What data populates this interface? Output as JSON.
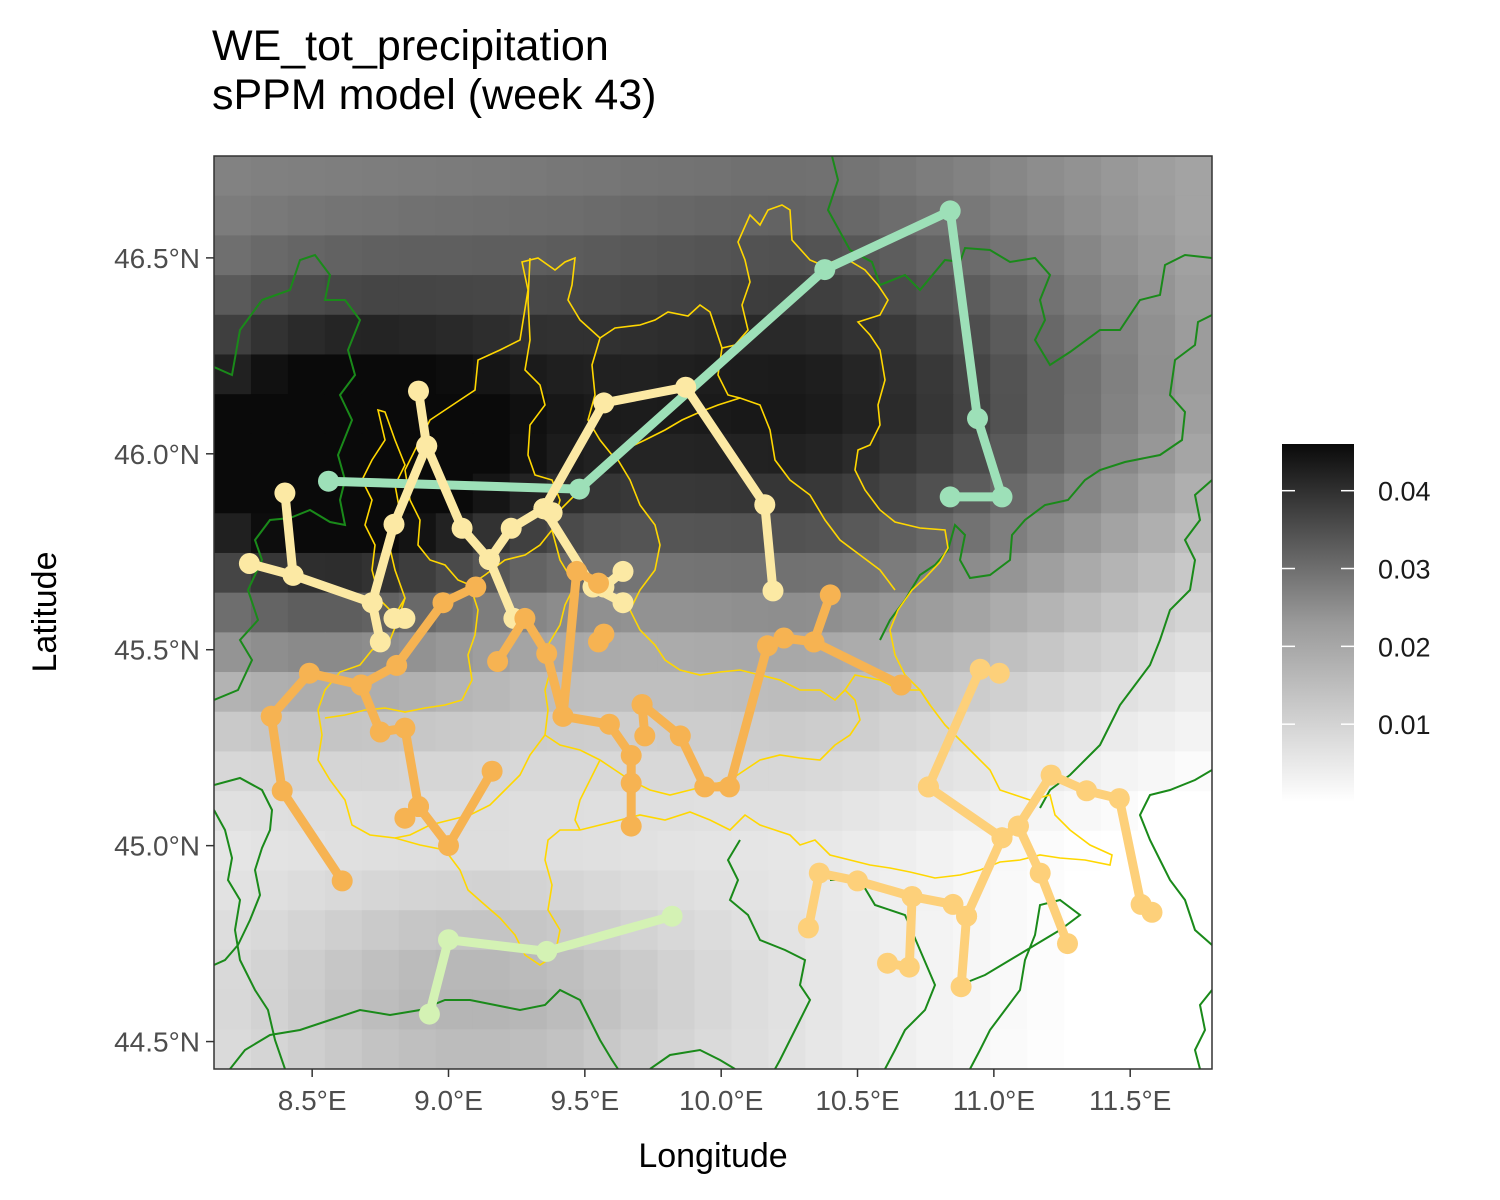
{
  "title": {
    "line1": "WE_tot_precipitation",
    "line2": "sPPM model (week 43)"
  },
  "chart_data": {
    "type": "map",
    "xlabel": "Longitude",
    "ylabel": "Latitude",
    "xlim": [
      8.14,
      11.8
    ],
    "ylim": [
      44.43,
      46.76
    ],
    "x_ticks": [
      {
        "value": 8.5,
        "label": "8.5°E"
      },
      {
        "value": 9.0,
        "label": "9.0°E"
      },
      {
        "value": 9.5,
        "label": "9.5°E"
      },
      {
        "value": 10.0,
        "label": "10.0°E"
      },
      {
        "value": 10.5,
        "label": "10.5°E"
      },
      {
        "value": 11.0,
        "label": "11.0°E"
      },
      {
        "value": 11.5,
        "label": "11.5°E"
      }
    ],
    "y_ticks": [
      {
        "value": 44.5,
        "label": "44.5°N"
      },
      {
        "value": 45.0,
        "label": "45.0°N"
      },
      {
        "value": 45.5,
        "label": "45.5°N"
      },
      {
        "value": 46.0,
        "label": "46.0°N"
      },
      {
        "value": 46.5,
        "label": "46.5°N"
      }
    ],
    "raster": {
      "description_values": "gridded intensity, darker = higher",
      "range": [
        0.0,
        0.046
      ],
      "colors": [
        "#ffffff",
        "#0a0a0a"
      ]
    },
    "legend": {
      "placement": "right",
      "ticks": [
        {
          "value": 0.01,
          "label": "0.01"
        },
        {
          "value": 0.02,
          "label": "0.02"
        },
        {
          "value": 0.03,
          "label": "0.03"
        },
        {
          "value": 0.04,
          "label": "0.04"
        }
      ]
    },
    "border_colors": {
      "green": "#1a8a1a",
      "yellow": "#ffd700"
    },
    "series": [
      {
        "color": "#9de0b8",
        "points": [
          [
            8.56,
            45.93
          ],
          [
            9.48,
            45.91
          ],
          [
            10.38,
            46.47
          ],
          [
            10.84,
            46.62
          ],
          [
            10.94,
            46.09
          ],
          [
            11.03,
            45.89
          ],
          [
            10.84,
            45.89
          ]
        ]
      },
      {
        "color": "#fce9a4",
        "points": [
          [
            8.27,
            45.72
          ],
          [
            8.43,
            45.69
          ],
          [
            8.4,
            45.9
          ]
        ]
      },
      {
        "color": "#fce9a4",
        "points": [
          [
            8.43,
            45.69
          ],
          [
            8.72,
            45.62
          ],
          [
            8.75,
            45.52
          ]
        ]
      },
      {
        "color": "#fce9a4",
        "points": [
          [
            8.72,
            45.62
          ],
          [
            8.8,
            45.82
          ],
          [
            8.92,
            46.02
          ],
          [
            8.89,
            46.16
          ]
        ]
      },
      {
        "color": "#fce9a4",
        "points": [
          [
            8.92,
            46.02
          ],
          [
            9.05,
            45.81
          ],
          [
            9.15,
            45.73
          ],
          [
            9.24,
            45.58
          ]
        ]
      },
      {
        "color": "#fce9a4",
        "points": [
          [
            9.15,
            45.73
          ],
          [
            9.23,
            45.81
          ],
          [
            9.35,
            45.86
          ],
          [
            9.57,
            46.13
          ],
          [
            9.87,
            46.17
          ],
          [
            10.16,
            45.87
          ],
          [
            10.19,
            45.65
          ]
        ]
      },
      {
        "color": "#fce9a4",
        "points": [
          [
            9.35,
            45.86
          ],
          [
            9.53,
            45.66
          ],
          [
            9.64,
            45.62
          ]
        ]
      },
      {
        "color": "#fce9a4",
        "points": [
          [
            9.35,
            45.86
          ],
          [
            9.38,
            45.85
          ]
        ]
      },
      {
        "color": "#fce9a4",
        "points": [
          [
            9.57,
            45.66
          ],
          [
            9.64,
            45.7
          ]
        ]
      },
      {
        "color": "#fce9a4",
        "points": [
          [
            8.8,
            45.58
          ],
          [
            8.84,
            45.58
          ]
        ]
      },
      {
        "color": "#f6b352",
        "points": [
          [
            8.35,
            45.33
          ],
          [
            8.49,
            45.44
          ],
          [
            8.68,
            45.41
          ],
          [
            8.81,
            45.46
          ],
          [
            8.98,
            45.62
          ],
          [
            9.1,
            45.66
          ]
        ]
      },
      {
        "color": "#f6b352",
        "points": [
          [
            8.35,
            45.33
          ],
          [
            8.39,
            45.14
          ],
          [
            8.61,
            44.91
          ]
        ]
      },
      {
        "color": "#f6b352",
        "points": [
          [
            8.68,
            45.41
          ],
          [
            8.75,
            45.29
          ],
          [
            8.84,
            45.3
          ],
          [
            8.89,
            45.1
          ],
          [
            9.0,
            45.0
          ],
          [
            9.16,
            45.19
          ]
        ]
      },
      {
        "color": "#f6b352",
        "points": [
          [
            8.89,
            45.1
          ],
          [
            8.84,
            45.07
          ]
        ]
      },
      {
        "color": "#f6b352",
        "points": [
          [
            9.18,
            45.47
          ],
          [
            9.28,
            45.58
          ],
          [
            9.36,
            45.49
          ],
          [
            9.42,
            45.33
          ],
          [
            9.59,
            45.31
          ],
          [
            9.67,
            45.23
          ],
          [
            9.67,
            45.16
          ],
          [
            9.67,
            45.05
          ]
        ]
      },
      {
        "color": "#f6b352",
        "points": [
          [
            9.42,
            45.33
          ],
          [
            9.47,
            45.7
          ],
          [
            9.55,
            45.67
          ]
        ]
      },
      {
        "color": "#f6b352",
        "points": [
          [
            9.55,
            45.52
          ],
          [
            9.57,
            45.54
          ]
        ]
      },
      {
        "color": "#f6b352",
        "points": [
          [
            9.71,
            45.36
          ],
          [
            9.85,
            45.28
          ],
          [
            9.94,
            45.15
          ],
          [
            10.03,
            45.15
          ],
          [
            10.17,
            45.51
          ],
          [
            10.23,
            45.53
          ],
          [
            10.34,
            45.52
          ],
          [
            10.4,
            45.64
          ]
        ]
      },
      {
        "color": "#f6b352",
        "points": [
          [
            9.71,
            45.36
          ],
          [
            9.72,
            45.28
          ]
        ]
      },
      {
        "color": "#f6b352",
        "points": [
          [
            10.34,
            45.52
          ],
          [
            10.66,
            45.41
          ]
        ]
      },
      {
        "color": "#fdd07a",
        "points": [
          [
            10.76,
            45.15
          ],
          [
            11.03,
            45.02
          ],
          [
            11.09,
            45.05
          ],
          [
            11.17,
            44.93
          ],
          [
            11.27,
            44.75
          ]
        ]
      },
      {
        "color": "#fdd07a",
        "points": [
          [
            10.76,
            45.15
          ],
          [
            10.95,
            45.45
          ],
          [
            11.02,
            45.44
          ]
        ]
      },
      {
        "color": "#fdd07a",
        "points": [
          [
            11.09,
            45.05
          ],
          [
            11.21,
            45.18
          ],
          [
            11.34,
            45.14
          ],
          [
            11.46,
            45.12
          ],
          [
            11.54,
            44.85
          ],
          [
            11.58,
            44.83
          ]
        ]
      },
      {
        "color": "#fdd07a",
        "points": [
          [
            11.03,
            45.02
          ],
          [
            10.9,
            44.82
          ],
          [
            10.88,
            44.64
          ]
        ]
      },
      {
        "color": "#fdd07a",
        "points": [
          [
            10.9,
            44.82
          ],
          [
            10.85,
            44.85
          ],
          [
            10.7,
            44.87
          ],
          [
            10.69,
            44.69
          ],
          [
            10.61,
            44.7
          ]
        ]
      },
      {
        "color": "#fdd07a",
        "points": [
          [
            10.7,
            44.87
          ],
          [
            10.5,
            44.91
          ],
          [
            10.36,
            44.93
          ],
          [
            10.32,
            44.79
          ]
        ]
      },
      {
        "color": "#d4f2b4",
        "points": [
          [
            8.93,
            44.57
          ],
          [
            9.0,
            44.76
          ],
          [
            9.36,
            44.73
          ],
          [
            9.82,
            44.82
          ]
        ]
      }
    ]
  }
}
